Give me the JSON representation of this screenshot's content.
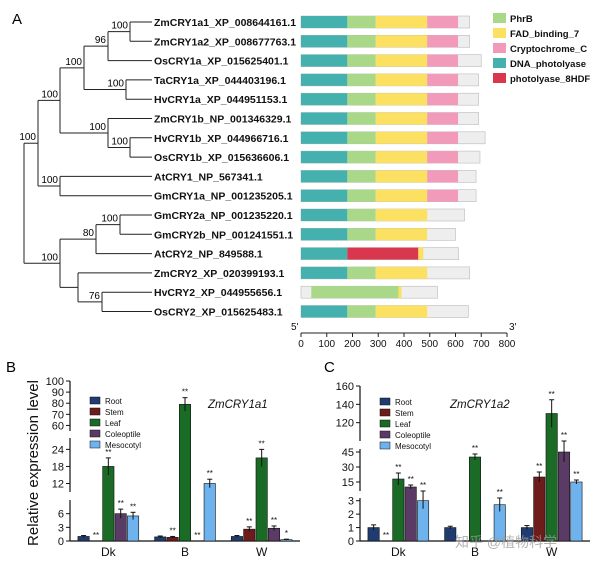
{
  "panel_labels": {
    "a": "A",
    "b": "B",
    "c": "C"
  },
  "tree": {
    "taxa": [
      {
        "name": "ZmCRY1a1_XP_008644161.1",
        "length": 655
      },
      {
        "name": "ZmCRY1a2_XP_008677763.1",
        "length": 655
      },
      {
        "name": "OsCRY1a_XP_015625401.1",
        "length": 700
      },
      {
        "name": "TaCRY1a_XP_044403196.1",
        "length": 690
      },
      {
        "name": "HvCRY1a_XP_044951153.1",
        "length": 690
      },
      {
        "name": "ZmCRY1b_NP_001346329.1",
        "length": 690
      },
      {
        "name": "HvCRY1b_XP_044966716.1",
        "length": 715
      },
      {
        "name": "OsCRY1b_XP_015636606.1",
        "length": 695
      },
      {
        "name": "AtCRY1_NP_567341.1",
        "length": 680
      },
      {
        "name": "GmCRY1a_NP_001235205.1",
        "length": 680
      },
      {
        "name": "GmCRY2a_NP_001235220.1",
        "length": 635
      },
      {
        "name": "GmCRY2b_NP_001241551.1",
        "length": 600
      },
      {
        "name": "AtCRY2_NP_849588.1",
        "length": 612
      },
      {
        "name": "ZmCRY2_XP_020399193.1",
        "length": 655
      },
      {
        "name": "HvCRY2_XP_044955656.1",
        "length": 530
      },
      {
        "name": "OsCRY2_XP_015625483.1",
        "length": 650
      }
    ],
    "bootstrap": [
      "100",
      "96",
      "100",
      "100",
      "100",
      "100",
      "100",
      "100",
      "100",
      "80",
      "100",
      "76",
      "100"
    ]
  },
  "domains": {
    "legend": [
      {
        "label": "PhrB",
        "color": "#a8d888"
      },
      {
        "label": "FAD_binding_7",
        "color": "#fce062"
      },
      {
        "label": "Cryptochrome_C",
        "color": "#f29aba"
      },
      {
        "label": "DNA_photolyase",
        "color": "#45b1ae"
      },
      {
        "label": "photolyase_8HDF",
        "color": "#d8374e"
      }
    ],
    "axis_ticks": [
      "0",
      "100",
      "200",
      "300",
      "400",
      "500",
      "600",
      "700",
      "800"
    ],
    "end5": "5'",
    "end3": "3'"
  },
  "chart_data": [
    {
      "type": "bar",
      "title": "ZmCRY1a1",
      "ylabel": "Relative expression level",
      "categories": [
        "Dk",
        "B",
        "W"
      ],
      "series": [
        {
          "name": "Root",
          "values": [
            1.0,
            0.9,
            1.0
          ],
          "errors": [
            0.2,
            0.2,
            0.2
          ],
          "marks": [
            "",
            "",
            ""
          ]
        },
        {
          "name": "Stem",
          "values": [
            0.05,
            0.8,
            2.6
          ],
          "errors": [
            0.05,
            0.2,
            0.5
          ],
          "marks": [
            "**",
            "**",
            "**"
          ]
        },
        {
          "name": "Leaf",
          "values": [
            18.0,
            79.0,
            21.0
          ],
          "errors": [
            3.0,
            6.0,
            3.0
          ],
          "marks": [
            "**",
            "**",
            "**"
          ]
        },
        {
          "name": "Coleoptile",
          "values": [
            6.0,
            0.05,
            2.8
          ],
          "errors": [
            1.0,
            0.05,
            0.5
          ],
          "marks": [
            "**",
            "**",
            "**"
          ]
        },
        {
          "name": "Mesocotyl",
          "values": [
            5.5,
            12.0,
            0.3
          ],
          "errors": [
            0.8,
            1.5,
            0.1
          ],
          "marks": [
            "**",
            "**",
            "*"
          ]
        }
      ],
      "y_segments": [
        {
          "range": [
            0,
            9
          ],
          "ticks": [
            "0",
            "3",
            "6"
          ]
        },
        {
          "range": [
            9,
            28
          ],
          "ticks": [
            "12",
            "18",
            "24"
          ]
        },
        {
          "range": [
            55,
            100
          ],
          "ticks": [
            "60",
            "70",
            "80",
            "90",
            "100"
          ]
        }
      ]
    },
    {
      "type": "bar",
      "title": "ZmCRY1a2",
      "ylabel": "Relative expression level",
      "categories": [
        "Dk",
        "B",
        "W"
      ],
      "series": [
        {
          "name": "Root",
          "values": [
            1.0,
            1.0,
            1.0
          ],
          "errors": [
            0.2,
            0.1,
            0.15
          ],
          "marks": [
            "",
            "",
            ""
          ]
        },
        {
          "name": "Stem",
          "values": [
            0.05,
            0.05,
            20.0
          ],
          "errors": [
            0.05,
            0.05,
            5.0
          ],
          "marks": [
            "**",
            "",
            "**"
          ]
        },
        {
          "name": "Leaf",
          "values": [
            18.0,
            40.0,
            130.0
          ],
          "errors": [
            6.0,
            3.0,
            15.0
          ],
          "marks": [
            "**",
            "**",
            "**"
          ]
        },
        {
          "name": "Coleoptile",
          "values": [
            10.0,
            0.05,
            45.0
          ],
          "errors": [
            2.0,
            0.05,
            10.0
          ],
          "marks": [
            "**",
            "",
            "**"
          ]
        },
        {
          "name": "Mesocotyl",
          "values": [
            3.0,
            2.7,
            15.0
          ],
          "errors": [
            0.6,
            0.5,
            2.0
          ],
          "marks": [
            "**",
            "**",
            "**"
          ]
        }
      ],
      "y_segments": [
        {
          "range": [
            0,
            3.2
          ],
          "ticks": [
            "0",
            "1",
            "2",
            "3"
          ]
        },
        {
          "range": [
            6,
            48
          ],
          "ticks": [
            "15",
            "30",
            "45"
          ]
        },
        {
          "range": [
            100,
            160
          ],
          "ticks": [
            "120",
            "140",
            "160"
          ]
        }
      ]
    }
  ],
  "watermark": "知乎 @植物科学"
}
